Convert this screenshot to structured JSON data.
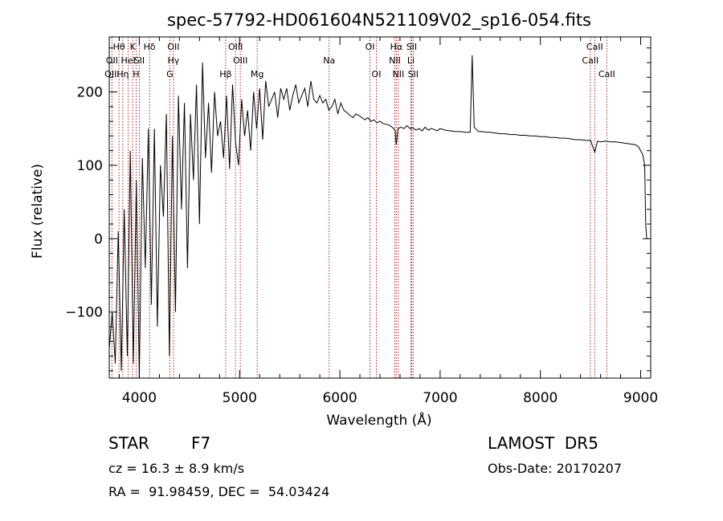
{
  "chart_data": {
    "type": "line",
    "title": "spec-57792-HD061604N521109V02_sp16-054.fits",
    "xlabel": "Wavelength (Å)",
    "ylabel": "Flux (relative)",
    "xlim": [
      3700,
      9100
    ],
    "ylim": [
      -190,
      275
    ],
    "x_ticks": [
      4000,
      5000,
      6000,
      7000,
      8000,
      9000
    ],
    "y_ticks": [
      -100,
      0,
      100,
      200
    ],
    "grid": false,
    "series": [
      {
        "line_color": "#000000",
        "x": [
          3700,
          3730,
          3760,
          3790,
          3820,
          3850,
          3880,
          3910,
          3940,
          3970,
          4000,
          4030,
          4060,
          4090,
          4120,
          4150,
          4180,
          4210,
          4240,
          4270,
          4300,
          4330,
          4360,
          4390,
          4420,
          4450,
          4480,
          4510,
          4540,
          4570,
          4600,
          4630,
          4660,
          4690,
          4720,
          4750,
          4780,
          4810,
          4840,
          4870,
          4900,
          4930,
          4960,
          4990,
          5020,
          5050,
          5080,
          5110,
          5140,
          5170,
          5200,
          5230,
          5260,
          5290,
          5320,
          5350,
          5380,
          5410,
          5440,
          5470,
          5500,
          5530,
          5560,
          5590,
          5620,
          5650,
          5680,
          5710,
          5740,
          5770,
          5800,
          5830,
          5860,
          5890,
          5920,
          5950,
          5980,
          6010,
          6040,
          6070,
          6100,
          6130,
          6160,
          6190,
          6220,
          6250,
          6280,
          6310,
          6340,
          6370,
          6400,
          6430,
          6460,
          6490,
          6520,
          6550,
          6563,
          6580,
          6610,
          6640,
          6670,
          6700,
          6730,
          6760,
          6790,
          6820,
          6850,
          6880,
          6910,
          6940,
          6970,
          7000,
          7050,
          7100,
          7150,
          7200,
          7250,
          7300,
          7320,
          7340,
          7380,
          7420,
          7460,
          7500,
          7550,
          7600,
          7650,
          7700,
          7750,
          7800,
          7850,
          7900,
          7950,
          8000,
          8050,
          8100,
          8150,
          8200,
          8250,
          8300,
          8350,
          8400,
          8450,
          8500,
          8542,
          8570,
          8600,
          8650,
          8700,
          8750,
          8800,
          8850,
          8900,
          8950,
          8980,
          9000,
          9020,
          9040,
          9050,
          9060
        ],
        "y": [
          -150,
          -100,
          -170,
          10,
          -180,
          40,
          -160,
          120,
          -170,
          80,
          -190,
          110,
          -40,
          150,
          -90,
          150,
          -120,
          100,
          30,
          170,
          -160,
          140,
          -100,
          195,
          40,
          185,
          -40,
          170,
          80,
          210,
          20,
          240,
          110,
          185,
          90,
          200,
          140,
          160,
          110,
          195,
          95,
          210,
          130,
          100,
          190,
          140,
          175,
          120,
          200,
          150,
          205,
          135,
          215,
          180,
          190,
          200,
          165,
          205,
          190,
          205,
          175,
          195,
          210,
          185,
          195,
          205,
          180,
          215,
          190,
          185,
          195,
          185,
          190,
          175,
          180,
          190,
          170,
          185,
          175,
          172,
          168,
          165,
          170,
          168,
          165,
          162,
          165,
          160,
          162,
          158,
          160,
          157,
          156,
          155,
          152,
          148,
          128,
          150,
          152,
          150,
          154,
          150,
          151,
          148,
          150,
          147,
          152,
          148,
          150,
          149,
          147,
          150,
          148,
          147,
          146,
          146,
          145,
          145,
          250,
          152,
          146,
          146,
          145,
          145,
          144,
          143,
          143,
          142,
          142,
          141,
          141,
          140,
          140,
          139,
          139,
          138,
          138,
          137,
          137,
          136,
          135,
          135,
          134,
          134,
          118,
          133,
          132,
          133,
          132,
          132,
          131,
          130,
          129,
          128,
          125,
          120,
          115,
          100,
          20,
          0
        ]
      }
    ],
    "spectral_lines": [
      {
        "name": "Hθ",
        "x": 3797,
        "row": 1
      },
      {
        "name": "OII",
        "x": 3727,
        "row": 2
      },
      {
        "name": "OIII",
        "x": 3727,
        "row": 3
      },
      {
        "name": "Hη",
        "x": 3835,
        "row": 3
      },
      {
        "name": "HeI",
        "x": 3889,
        "row": 2
      },
      {
        "name": "K",
        "x": 3934,
        "row": 1
      },
      {
        "name": "H",
        "x": 3968,
        "row": 3
      },
      {
        "name": "SII",
        "x": 4000,
        "row": 2
      },
      {
        "name": "Hδ",
        "x": 4102,
        "row": 1
      },
      {
        "name": "OII",
        "x": 4340,
        "row": 1
      },
      {
        "name": "Hγ",
        "x": 4340,
        "row": 2
      },
      {
        "name": "G",
        "x": 4304,
        "row": 3
      },
      {
        "name": "Hβ",
        "x": 4861,
        "row": 3
      },
      {
        "name": "OIII",
        "x": 4959,
        "row": 1
      },
      {
        "name": "OIII",
        "x": 5007,
        "row": 2
      },
      {
        "name": "Mg",
        "x": 5175,
        "row": 3
      },
      {
        "name": "Na",
        "x": 5893,
        "row": 2
      },
      {
        "name": "OI",
        "x": 6300,
        "row": 1
      },
      {
        "name": "OI",
        "x": 6364,
        "row": 3
      },
      {
        "name": "Hα",
        "x": 6563,
        "row": 1
      },
      {
        "name": "NII",
        "x": 6548,
        "row": 2
      },
      {
        "name": "NII",
        "x": 6583,
        "row": 3
      },
      {
        "name": "SII",
        "x": 6716,
        "row": 1
      },
      {
        "name": "Li",
        "x": 6708,
        "row": 2
      },
      {
        "name": "SII",
        "x": 6731,
        "row": 3
      },
      {
        "name": "CaII",
        "x": 8542,
        "row": 1
      },
      {
        "name": "CaII",
        "x": 8498,
        "row": 2
      },
      {
        "name": "CaII",
        "x": 8662,
        "row": 3
      }
    ]
  },
  "info": {
    "object_class": "STAR",
    "subclass": "F7",
    "survey": "LAMOST  DR5",
    "redshift": "cz = 16.3 ± 8.9 km/s",
    "obs_date": "Obs-Date: 20170207",
    "coordinates": "RA =  91.98459, DEC =  54.03424"
  },
  "colors": {
    "spectral_line": "#b22222",
    "axis": "#000000"
  }
}
